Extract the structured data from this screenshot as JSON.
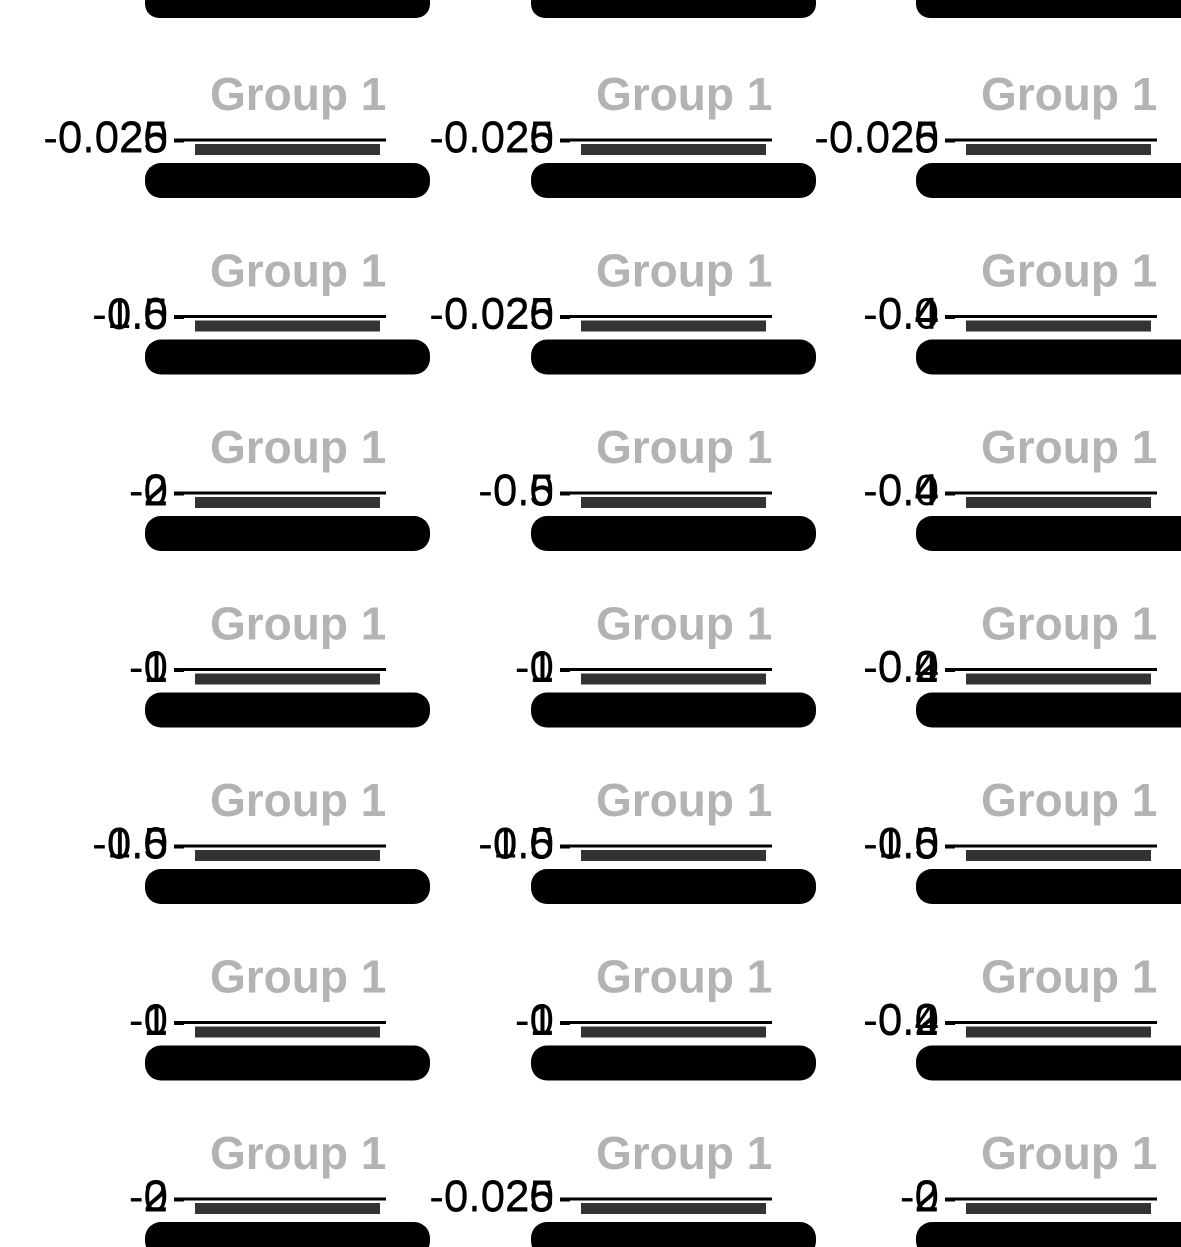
{
  "chart_data": [
    {
      "type": "bar",
      "title": "Group 1",
      "values": [
        0.025
      ],
      "ylim": [
        -0.025,
        0.025
      ],
      "yticks": [
        -0.025,
        0,
        0.025
      ]
    },
    {
      "type": "bar",
      "title": "Group 1",
      "values": [
        0.025
      ],
      "ylim": [
        -0.025,
        0.025
      ],
      "yticks": [
        -0.025,
        0,
        0.025
      ]
    },
    {
      "type": "bar",
      "title": "Group 1",
      "values": [
        0.025
      ],
      "ylim": [
        -0.025,
        0.025
      ],
      "yticks": [
        -0.025,
        0,
        0.025
      ]
    },
    {
      "type": "bar",
      "title": "Group 1",
      "values": [
        1.0
      ],
      "ylim": [
        -0.5,
        1.0
      ],
      "yticks": [
        -0.5,
        0,
        0.5,
        {
          "value": 1,
          "label": "1.0"
        }
      ]
    },
    {
      "type": "bar",
      "title": "Group 1",
      "values": [
        0.025
      ],
      "ylim": [
        -0.025,
        0.025
      ],
      "yticks": [
        -0.025,
        0,
        0.025
      ]
    },
    {
      "type": "bar",
      "title": "Group 1",
      "values": [
        0.4
      ],
      "ylim": [
        -0.4,
        0.4
      ],
      "yticks": [
        -0.4,
        0,
        0.4
      ]
    },
    {
      "type": "bar",
      "title": "Group 1",
      "values": [
        2
      ],
      "ylim": [
        -2,
        2
      ],
      "yticks": [
        -2,
        0,
        2
      ]
    },
    {
      "type": "bar",
      "title": "Group 1",
      "values": [
        0.5
      ],
      "ylim": [
        -0.5,
        0.5
      ],
      "yticks": [
        -0.5,
        0,
        0.5
      ]
    },
    {
      "type": "bar",
      "title": "Group 1",
      "values": [
        0.4
      ],
      "ylim": [
        -0.4,
        0.4
      ],
      "yticks": [
        -0.4,
        0,
        0.4
      ]
    },
    {
      "type": "bar",
      "title": "Group 1",
      "values": [
        1
      ],
      "ylim": [
        -1,
        1
      ],
      "yticks": [
        -1,
        0,
        1
      ]
    },
    {
      "type": "bar",
      "title": "Group 1",
      "values": [
        1
      ],
      "ylim": [
        -1,
        1
      ],
      "yticks": [
        -1,
        0,
        1
      ]
    },
    {
      "type": "bar",
      "title": "Group 1",
      "values": [
        0.2
      ],
      "ylim": [
        -0.4,
        0.2
      ],
      "yticks": [
        -0.4,
        -0.2,
        0,
        0.2
      ]
    },
    {
      "type": "bar",
      "title": "Group 1",
      "values": [
        1.0
      ],
      "ylim": [
        -0.5,
        1.0
      ],
      "yticks": [
        -0.5,
        0,
        0.5,
        {
          "value": 1,
          "label": "1.0"
        }
      ]
    },
    {
      "type": "bar",
      "title": "Group 1",
      "values": [
        1.0
      ],
      "ylim": [
        -0.5,
        1.0
      ],
      "yticks": [
        -0.5,
        0,
        0.5,
        {
          "value": 1,
          "label": "1.0"
        }
      ]
    },
    {
      "type": "bar",
      "title": "Group 1",
      "values": [
        1.0
      ],
      "ylim": [
        -0.5,
        1.0
      ],
      "yticks": [
        -0.5,
        0,
        0.5,
        {
          "value": 1,
          "label": "1.0"
        }
      ]
    },
    {
      "type": "bar",
      "title": "Group 1",
      "values": [
        1
      ],
      "ylim": [
        -1,
        1
      ],
      "yticks": [
        -1,
        0,
        1
      ]
    },
    {
      "type": "bar",
      "title": "Group 1",
      "values": [
        1
      ],
      "ylim": [
        -1,
        1
      ],
      "yticks": [
        -1,
        0,
        1
      ]
    },
    {
      "type": "bar",
      "title": "Group 1",
      "values": [
        0.2
      ],
      "ylim": [
        -0.4,
        0.2
      ],
      "yticks": [
        -0.4,
        -0.2,
        0,
        0.2
      ]
    },
    {
      "type": "bar",
      "title": "Group 1",
      "values": [
        2
      ],
      "ylim": [
        -2,
        2
      ],
      "yticks": [
        -2,
        0,
        2
      ]
    },
    {
      "type": "bar",
      "title": "Group 1",
      "values": [
        0.025
      ],
      "ylim": [
        -0.025,
        0.025
      ],
      "yticks": [
        -0.025,
        0,
        0.025
      ]
    },
    {
      "type": "bar",
      "title": "Group 1",
      "values": [
        2
      ],
      "ylim": [
        -2,
        2
      ],
      "yticks": [
        -2,
        0,
        2
      ]
    }
  ]
}
